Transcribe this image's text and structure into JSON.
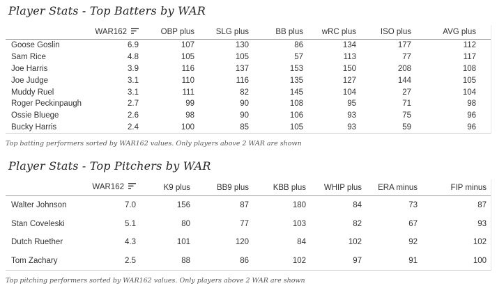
{
  "batters": {
    "title": "Player Stats - Top Batters by WAR",
    "caption": "Top batting performers sorted by WAR162 values. Only players above 2 WAR are shown",
    "headers": [
      "",
      "WAR162",
      "OBP plus",
      "SLG plus",
      "BB plus",
      "wRC plus",
      "ISO plus",
      "AVG plus"
    ],
    "sort_icon": "sort-descending-icon",
    "rows": [
      [
        "Goose Goslin",
        "6.9",
        "107",
        "130",
        "86",
        "134",
        "177",
        "112"
      ],
      [
        "Sam Rice",
        "4.8",
        "105",
        "105",
        "57",
        "113",
        "77",
        "117"
      ],
      [
        "Joe Harris",
        "3.9",
        "116",
        "137",
        "153",
        "150",
        "208",
        "108"
      ],
      [
        "Joe Judge",
        "3.1",
        "110",
        "116",
        "135",
        "127",
        "144",
        "105"
      ],
      [
        "Muddy Ruel",
        "3.1",
        "111",
        "82",
        "145",
        "104",
        "27",
        "104"
      ],
      [
        "Roger Peckinpaugh",
        "2.7",
        "99",
        "90",
        "108",
        "95",
        "71",
        "98"
      ],
      [
        "Ossie Bluege",
        "2.6",
        "98",
        "90",
        "106",
        "93",
        "75",
        "96"
      ],
      [
        "Bucky Harris",
        "2.4",
        "100",
        "85",
        "105",
        "93",
        "59",
        "96"
      ]
    ]
  },
  "pitchers": {
    "title": "Player Stats - Top Pitchers by WAR",
    "caption": "Top pitching performers sorted by WAR162 values. Only players above 2 WAR are shown",
    "headers": [
      "",
      "WAR162",
      "K9 plus",
      "BB9 plus",
      "KBB plus",
      "WHIP plus",
      "ERA minus",
      "FIP minus"
    ],
    "sort_icon": "sort-descending-icon",
    "rows": [
      [
        "Walter Johnson",
        "7.0",
        "156",
        "87",
        "180",
        "84",
        "73",
        "87"
      ],
      [
        "Stan Coveleski",
        "5.1",
        "80",
        "77",
        "103",
        "82",
        "67",
        "93"
      ],
      [
        "Dutch Ruether",
        "4.3",
        "101",
        "120",
        "84",
        "102",
        "92",
        "102"
      ],
      [
        "Tom Zachary",
        "2.5",
        "88",
        "86",
        "102",
        "97",
        "91",
        "100"
      ]
    ]
  }
}
